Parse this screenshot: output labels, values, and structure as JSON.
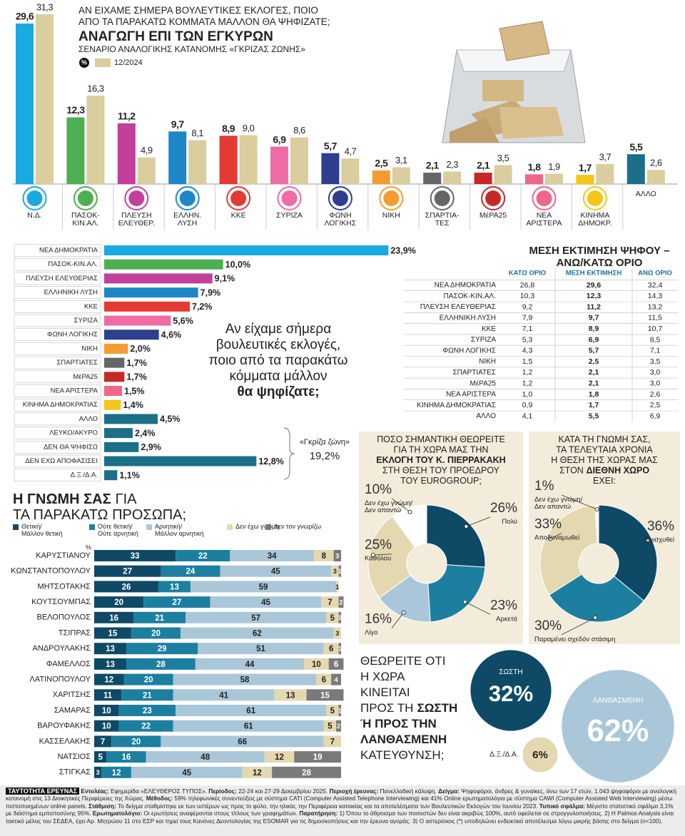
{
  "chart_data": [
    {
      "type": "bar",
      "question": [
        [
          {
            "text": "ΑΝ ΕΙΧΑΜΕ ΣΗΜΕΡΑ ΒΟΥΛΕΥΤΙΚΕΣ ΕΚΛΟΓΕΣ, ΠΟΙΟ"
          }
        ],
        [
          {
            "text": "ΑΠΟ ΤΑ ΠΑΡΑΚΑΤΩ ΚΟΜΜΑΤΑ ΜΑΛΛΟΝ ΘΑ ΨΗΦΙΖΑΤΕ;"
          }
        ]
      ],
      "title": "ΑΝΑΓΩΓΗ ΕΠΙ ΤΩΝ ΕΓΚΥΡΩΝ",
      "subtitle": "ΣΕΝΑΡΙΟ ΑΝΑΛΟΓΙΚΗΣ ΚΑΤΑΝΟΜΗΣ «ΓΚΡΙΖΑΣ ΖΩΝΗΣ»",
      "categories": [
        "Ν.Δ.",
        "ΠΑΣΟΚ-ΚΙΝ.ΑΛ.",
        "ΠΛΕΥΣΗ ΕΛΕΥΘΕΡ.",
        "ΕΛΛΗΝ. ΛΥΣΗ",
        "ΚΚΕ",
        "ΣΥΡΙΖΑ",
        "ΦΩΝΗ ΛΟΓΙΚΗΣ",
        "ΝΙΚΗ",
        "ΣΠΑΡΤΙΑ-ΤΕΣ",
        "ΜέΡΑ25",
        "ΝΕΑ ΑΡΙΣΤΕΡΑ",
        "ΚΙΝΗΜΑ ΔΗΜΟΚΡ.",
        "ΑΛΛΟ"
      ],
      "series": [
        {
          "name": "%",
          "color": "#111111",
          "colors": [
            "#1aa9e1",
            "#4caf50",
            "#c2409a",
            "#1e88c7",
            "#e53935",
            "#f06aa6",
            "#2e3f8f",
            "#f39c32",
            "#666666",
            "#c62828",
            "#f0658a",
            "#f5c518",
            "#1b6f86"
          ],
          "values": [
            29.6,
            12.3,
            11.2,
            9.7,
            8.9,
            6.9,
            5.7,
            2.5,
            2.1,
            2.1,
            1.8,
            1.7,
            5.5
          ],
          "value_labels": [
            "29,6",
            "12,3",
            "11,2",
            "9,7",
            "8,9",
            "6,9",
            "5,7",
            "2,5",
            "2,1",
            "2,1",
            "1,8",
            "1,7",
            "5,5"
          ]
        },
        {
          "name": "12/2024",
          "color": "#dacd9e",
          "values": [
            31.3,
            16.3,
            4.9,
            8.1,
            9.0,
            8.6,
            4.7,
            3.1,
            2.3,
            3.5,
            1.9,
            3.7,
            2.6
          ],
          "value_labels": [
            "31,3",
            "16,3",
            "4,9",
            "8,1",
            "9,0",
            "8,6",
            "4,7",
            "3,1",
            "2,3",
            "3,5",
            "1,9",
            "3,7",
            "2,6"
          ]
        }
      ],
      "ylim": [
        0,
        30
      ]
    },
    {
      "type": "hbar",
      "categories": [
        "ΝΕΑ ΔΗΜΟΚΡΑΤΙΑ",
        "ΠΑΣΟΚ-ΚΙΝ.ΑΛ.",
        "ΠΛΕΥΣΗ ΕΛΕΥΘΕΡΙΑΣ",
        "ΕΛΛΗΝΙΚΗ ΛΥΣΗ",
        "ΚΚΕ",
        "ΣΥΡΙΖΑ",
        "ΦΩΝΗ ΛΟΓΙΚΗΣ",
        "ΝΙΚΗ",
        "ΣΠΑΡΤΙΑΤΕΣ",
        "ΜέΡΑ25",
        "ΝΕΑ ΑΡΙΣΤΕΡΑ",
        "ΚΙΝΗΜΑ ΔΗΜΟΚΡΑΤΙΑΣ",
        "ΑΛΛΟ",
        "ΛΕΥΚΟ/ΑΚΥΡΟ",
        "ΔΕΝ ΘΑ ΨΗΦΙΣΩ",
        "ΔΕΝ ΕΧΩ ΑΠΟΦΑΣΙΣΕΙ",
        "Δ.Ξ./Δ.Α."
      ],
      "values": [
        23.9,
        10.0,
        9.1,
        7.9,
        7.2,
        5.6,
        4.6,
        2.0,
        1.7,
        1.7,
        1.5,
        1.4,
        4.5,
        2.4,
        2.9,
        12.8,
        1.1
      ],
      "value_labels": [
        "23,9%",
        "10,0%",
        "9,1%",
        "7,9%",
        "7,2%",
        "5,6%",
        "4,6%",
        "2,0%",
        "1,7%",
        "1,7%",
        "1,5%",
        "1,4%",
        "4,5%",
        "2,4%",
        "2,9%",
        "12,8%",
        "1,1%"
      ],
      "colors": [
        "#1aa9e1",
        "#4caf50",
        "#c2409a",
        "#1e88c7",
        "#e53935",
        "#f06aa6",
        "#2e3f8f",
        "#f39c32",
        "#666666",
        "#c62828",
        "#f0658a",
        "#f5c518",
        "#1b6f86",
        "#1b6f86",
        "#1b6f86",
        "#1b6f86",
        "#1b6f86"
      ],
      "xlim": [
        0,
        24
      ],
      "question": [
        [
          {
            "text": "Αν είχαμε σήμερα"
          }
        ],
        [
          {
            "text": "βουλευτικές εκλογές,"
          }
        ],
        [
          {
            "text": "ποιο από τα παρακάτω"
          }
        ],
        [
          {
            "text": "κόμματα μάλλον"
          }
        ],
        [
          {
            "text": "θα ψηφίζατε;",
            "bold": true
          }
        ]
      ],
      "gray_zone_label": "«Γκρίζα ζώνη»",
      "gray_zone_value": "19,2%"
    },
    {
      "type": "stacked-hbar",
      "title": [
        [
          {
            "text": "Η ΓΝΩΜΗ ΣΑΣ",
            "bold": true
          },
          {
            "text": "ΓΙΑ"
          }
        ],
        [
          {
            "text": "ΤΑ ΠΑΡΑΚΑΤΩ ΠΡΟΣΩΠΑ;"
          }
        ]
      ],
      "unit": "%",
      "categories": [
        "ΚΑΡΥΣΤΙΑΝΟΥ",
        "ΚΩΝΣΤΑΝΤΟΠΟΥΛΟΥ",
        "ΜΗΤΣΟΤΑΚΗΣ",
        "ΚΟΥΤΣΟΥΜΠΑΣ",
        "ΒΕΛΟΠΟΥΛΟΣ",
        "ΤΣΙΠΡΑΣ",
        "ΑΝΔΡΟΥΛΑΚΗΣ",
        "ΦΑΜΕΛΛΟΣ",
        "ΛΑΤΙΝΟΠΟΥΛΟΥ",
        "ΧΑΡΙΤΣΗΣ",
        "ΣΑΜΑΡΑΣ",
        "ΒΑΡΟΥΦΑΚΗΣ",
        "ΚΑΣΣΕΛΑΚΗΣ",
        "ΝΑΤΣΙΟΣ",
        "ΣΤΙΓΚΑΣ"
      ],
      "series": [
        {
          "name": "Θετική/ Μάλλον θετική",
          "color": "#0e4a66",
          "values": [
            33,
            27,
            26,
            20,
            16,
            15,
            13,
            13,
            12,
            11,
            10,
            10,
            7,
            5,
            3
          ]
        },
        {
          "name": "Ούτε θετική/ Ούτε αρνητική",
          "color": "#1d7fa0",
          "values": [
            22,
            24,
            13,
            27,
            21,
            20,
            29,
            28,
            20,
            21,
            23,
            22,
            20,
            16,
            12
          ]
        },
        {
          "name": "Αρνητική/ Μάλλον αρνητική",
          "color": "#a9c7d9",
          "values": [
            34,
            45,
            59,
            45,
            57,
            62,
            51,
            44,
            58,
            41,
            61,
            61,
            66,
            48,
            45
          ]
        },
        {
          "name": "Δεν έχω γνώμη",
          "color": "#e4d8b1",
          "values": [
            8,
            3,
            1,
            7,
            5,
            3,
            6,
            10,
            6,
            13,
            5,
            5,
            7,
            12,
            12
          ]
        },
        {
          "name": "Δεν τον γνωρίζω",
          "color": "#7a7a7a",
          "values": [
            3,
            1,
            null,
            2,
            1,
            null,
            1,
            6,
            4,
            15,
            1,
            2,
            null,
            19,
            28
          ]
        }
      ],
      "xlim": [
        0,
        100
      ]
    },
    {
      "type": "pie",
      "title": [
        [
          {
            "text": "ΠΟΣΟ ΣΗΜΑΝΤΙΚΗ ΘΕΩΡΕΙΤΕ"
          }
        ],
        [
          {
            "text": "ΓΙΑ ΤΗ ΧΩΡΑ ΜΑΣ ΤΗΝ"
          }
        ],
        [
          {
            "text": "ΕΚΛΟΓΗ ΤΟΥ Κ. ΠΙΕΡΡΑΚΑΚΗ",
            "bold": true
          }
        ],
        [
          {
            "text": "ΣΤΗ ΘΕΣΗ ΤΟΥ ΠΡΟΕΔΡΟΥ"
          }
        ],
        [
          {
            "text": "ΤΟΥ EUROGROUP;"
          }
        ]
      ],
      "categories": [
        "Πολύ",
        "Αρκετά",
        "Λίγο",
        "Καθόλου",
        "Δεν έχω γνώμη/ Δεν απαντώ"
      ],
      "values": [
        26,
        23,
        16,
        25,
        10
      ],
      "value_labels": [
        "26%",
        "23%",
        "16%",
        "25%",
        "10%"
      ],
      "colors": [
        "#0e4a66",
        "#1d7fa0",
        "#a9c7d9",
        "#e4d8b1",
        "#ffffff"
      ]
    },
    {
      "type": "pie",
      "title": [
        [
          {
            "text": "ΚΑΤΑ ΤΗ ΓΝΩΜΗ ΣΑΣ,"
          }
        ],
        [
          {
            "text": "ΤΑ ΤΕΛΕΥΤΑΙΑ ΧΡΟΝΙΑ"
          }
        ],
        [
          {
            "text": "Η ΘΕΣΗ ΤΗΣ ΧΩΡΑΣ ΜΑΣ"
          }
        ],
        [
          {
            "text": "ΣΤΟΝ"
          },
          {
            "text": "ΔΙΕΘΝΗ ΧΩΡΟ",
            "bold": true
          }
        ],
        [
          {
            "text": "ΕΧΕΙ:"
          }
        ]
      ],
      "categories": [
        "Ενισχυθεί",
        "Παραμένει σχεδόν στάσιμη",
        "Αποδυναμωθεί",
        "Δεν έχω γνώμη/ Δεν απαντώ"
      ],
      "values": [
        36,
        30,
        33,
        1
      ],
      "value_labels": [
        "36%",
        "30%",
        "33%",
        "1%"
      ],
      "colors": [
        "#0e4a66",
        "#1d7fa0",
        "#e4d8b1",
        "#ffffff"
      ]
    },
    {
      "type": "bubble",
      "question": [
        [
          {
            "text": "ΘΕΩΡΕΙΤΕ ΟΤΙ"
          }
        ],
        [
          {
            "text": "Η ΧΩΡΑ"
          }
        ],
        [
          {
            "text": "ΚΙΝΕΙΤΑΙ"
          }
        ],
        [
          {
            "text": "ΠΡΟΣ ΤΗ"
          },
          {
            "text": "ΣΩΣΤΗ",
            "bold": true
          }
        ],
        [
          {
            "text": "Ή ΠΡΟΣ ΤΗΝ",
            "bold": true
          }
        ],
        [
          {
            "text": "ΛΑΝΘΑΣΜΕΝΗ",
            "bold": true
          }
        ],
        [
          {
            "text": "ΚΑΤΕΥΘΥΝΣΗ;"
          }
        ]
      ],
      "categories": [
        "ΣΩΣΤΗ",
        "ΛΑΝΘΑΣΜΕΝΗ",
        "Δ.Ξ./Δ.Α."
      ],
      "values": [
        32,
        62,
        6
      ],
      "value_labels": [
        "32%",
        "62%",
        "6%"
      ],
      "colors": [
        "#0e4a66",
        "#a9c7d9",
        "#e4d8b1"
      ]
    }
  ],
  "table": {
    "title": [
      [
        {
          "text": "ΜΕΣΗ ΕΚΤΙΜΗΣΗ ΨΗΦΟΥ –",
          "bold": true
        }
      ],
      [
        {
          "text": "ΑΝΩ/ΚΑΤΩ ΟΡΙΟ",
          "bold": true
        }
      ]
    ],
    "columns": [
      "ΚΑΤΩ ΟΡΙΟ",
      "ΜΕΣΗ ΕΚΤΙΜΗΣΗ",
      "ΑΝΩ ΟΡΙΟ"
    ],
    "rows": [
      [
        "ΝΕΑ ΔΗΜΟΚΡΑΤΙΑ",
        "26,8",
        "29,6",
        "32,4"
      ],
      [
        "ΠΑΣΟΚ-ΚΙΝ.ΑΛ.",
        "10,3",
        "12,3",
        "14,3"
      ],
      [
        "ΠΛΕΥΣΗ ΕΛΕΥΘΕΡΙΑΣ",
        "9,2",
        "11,2",
        "13,2"
      ],
      [
        "ΕΛΛΗΝΙΚΗ ΛΥΣΗ",
        "7,9",
        "9,7",
        "11,5"
      ],
      [
        "ΚΚΕ",
        "7,1",
        "8,9",
        "10,7"
      ],
      [
        "ΣΥΡΙΖΑ",
        "5,3",
        "6,9",
        "8,5"
      ],
      [
        "ΦΩΝΗ ΛΟΓΙΚΗΣ",
        "4,3",
        "5,7",
        "7,1"
      ],
      [
        "ΝΙΚΗ",
        "1,5",
        "2,5",
        "3,5"
      ],
      [
        "ΣΠΑΡΤΙΑΤΕΣ",
        "1,2",
        "2,1",
        "3,0"
      ],
      [
        "ΜέΡΑ25",
        "1,2",
        "2,1",
        "3,0"
      ],
      [
        "ΝΕΑ ΑΡΙΣΤΕΡΑ",
        "1,0",
        "1,8",
        "2,6"
      ],
      [
        "ΚΙΝΗΜΑ ΔΗΜΟΚΡΑΤΙΑΣ",
        "0,9",
        "1,7",
        "2,5"
      ],
      [
        "ΑΛΛΟ",
        "4,1",
        "5,5",
        "6,9"
      ]
    ]
  },
  "footer": {
    "title": "ΤΑΥΤΟΤΗΤΑ ΕΡΕΥΝΑΣ",
    "items": [
      {
        "label": "Εντολέας:",
        "text": "Εφημερίδα «ΕΛΕΥΘΕΡΟΣ ΤΥΠΟΣ»."
      },
      {
        "label": "Περίοδος:",
        "text": "22-24 και 27-29 Δεκεμβρίου 2025."
      },
      {
        "label": "Περιοχή έρευνας:",
        "text": "Πανελλαδική κάλυψη."
      },
      {
        "label": "Δείγμα:",
        "text": "Ψηφοφόροι, άνδρες & γυναίκες, άνω των 17 ετών, 1.043 ψηφοφόροι με αναλογική κατανομή στις 13 Διοικητικές Περιφέρειες της Χώρας."
      },
      {
        "label": "Μέθοδος:",
        "text": "59% τηλεφωνικές συνεντεύξεις με σύστημα CATI (Computer Assisted Telephone Interviewing) και 41% Online ερωτηματολόγια με σύστημα CAWI (Computer Assisted Web Interviewing) μέσω πιστοποιημένων online panels."
      },
      {
        "label": "Στάθμιση:",
        "text": "Το δείγμα σταθμίστηκε εκ των υστέρων ως προς το φύλο, την ηλικία, την Περιφέρεια κατοικίας και τα αποτελέσματα των Βουλευτικών Εκλογών του Ιουνίου 2023."
      },
      {
        "label": "Τυπικό σφάλμα:",
        "text": "Μέγιστο στατιστικό σφάλμα 3,1% με διάστημα εμπιστοσύνης 95%."
      },
      {
        "label": "Ερωτηματολόγιο:",
        "text": "Οι ερωτήσεις αναφέρονται στους τίτλους των γραφημάτων."
      },
      {
        "label": "Παρατήρηση:",
        "text": "1) Όπου το άθροισμα των ποσοστών δεν είναι ακριβώς 100%, αυτό οφείλεται σε στρογγυλοποιήσεις. 2) Η Palmos Analysis είναι τακτικό μέλος του ΣΕΔΕΑ, έχει Αρ. Μητρώου 11 στο ΕΣΡ και τηρεί τους Κανόνες Δεοντολογίας της ESOMAR για τις δημοσκοπήσεις και την έρευνα αγοράς. 3) Ο αστερίσκος (*) υποδηλώνει ενδεικτικό αποτέλεσμα λόγω μικρής βάσης στο δείγμα (n<100)."
      }
    ]
  }
}
